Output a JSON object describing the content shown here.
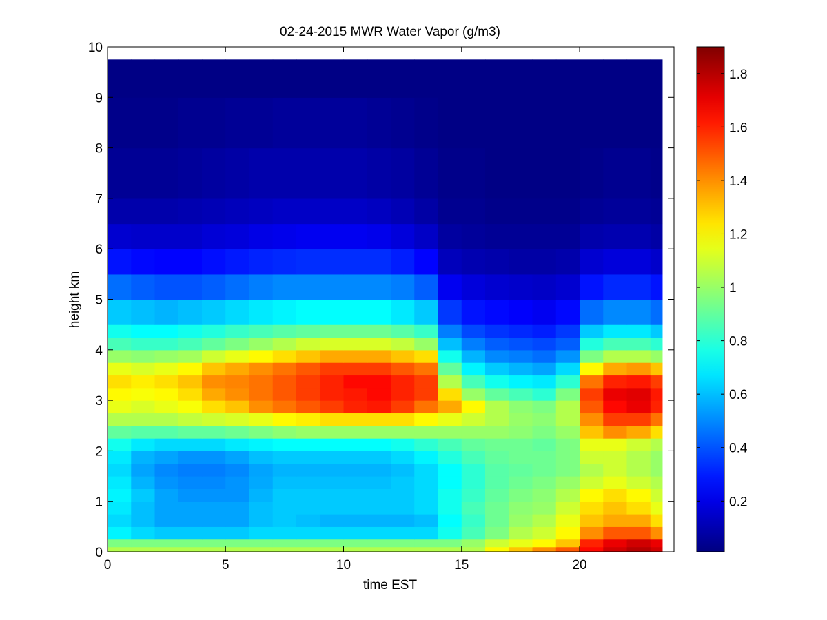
{
  "chart_data": {
    "type": "heatmap",
    "title": "02-24-2015 MWR Water Vapor (g/m3)",
    "xlabel": "time EST",
    "ylabel": "height km",
    "xlim": [
      0,
      24
    ],
    "ylim": [
      0,
      10
    ],
    "x_ticks": [
      0,
      5,
      10,
      15,
      20
    ],
    "y_ticks": [
      0,
      1,
      2,
      3,
      4,
      5,
      6,
      7,
      8,
      9,
      10
    ],
    "colormap": "jet",
    "color_range": [
      0.01,
      1.9
    ],
    "colorbar_ticks": [
      0.2,
      0.4,
      0.6,
      0.8,
      1,
      1.2,
      1.4,
      1.6,
      1.8
    ],
    "data_extent": {
      "time": [
        0,
        23.5
      ],
      "height": [
        0,
        9.75
      ]
    },
    "time_bins": [
      0,
      1,
      2,
      3,
      4,
      5,
      6,
      7,
      8,
      9,
      10,
      11,
      12,
      13,
      14,
      15,
      16,
      17,
      18,
      19,
      20,
      21,
      22,
      23
    ],
    "height_bins_km": [
      0.0,
      0.1,
      0.25,
      0.5,
      0.75,
      1.0,
      1.25,
      1.5,
      1.75,
      2.0,
      2.25,
      2.5,
      2.75,
      3.0,
      3.25,
      3.5,
      3.75,
      4.0,
      4.25,
      4.5,
      5.0,
      5.5,
      6.0,
      6.5,
      7.0,
      8.0,
      9.0
    ],
    "values": [
      [
        1.05,
        1.05,
        1.05,
        1.05,
        1.05,
        1.05,
        1.05,
        1.05,
        1.05,
        1.05,
        1.05,
        1.05,
        1.05,
        1.05,
        1.05,
        1.05,
        1.2,
        1.3,
        1.4,
        1.5,
        1.65,
        1.75,
        1.8,
        1.75
      ],
      [
        0.95,
        0.95,
        0.95,
        0.95,
        0.95,
        0.95,
        0.95,
        0.95,
        0.95,
        0.95,
        0.95,
        0.95,
        0.95,
        0.95,
        0.95,
        1.0,
        1.1,
        1.15,
        1.2,
        1.3,
        1.6,
        1.7,
        1.75,
        1.7
      ],
      [
        0.7,
        0.65,
        0.62,
        0.62,
        0.62,
        0.62,
        0.65,
        0.65,
        0.65,
        0.65,
        0.65,
        0.65,
        0.65,
        0.65,
        0.75,
        0.85,
        0.95,
        1.05,
        1.1,
        1.2,
        1.4,
        1.5,
        1.5,
        1.4
      ],
      [
        0.65,
        0.6,
        0.55,
        0.55,
        0.55,
        0.55,
        0.6,
        0.62,
        0.6,
        0.58,
        0.58,
        0.58,
        0.58,
        0.6,
        0.72,
        0.82,
        0.92,
        1.0,
        1.05,
        1.15,
        1.3,
        1.35,
        1.35,
        1.25
      ],
      [
        0.68,
        0.6,
        0.55,
        0.55,
        0.55,
        0.55,
        0.6,
        0.62,
        0.62,
        0.62,
        0.62,
        0.62,
        0.62,
        0.65,
        0.75,
        0.85,
        0.92,
        0.98,
        1.0,
        1.1,
        1.25,
        1.3,
        1.25,
        1.15
      ],
      [
        0.7,
        0.62,
        0.55,
        0.52,
        0.52,
        0.52,
        0.58,
        0.62,
        0.62,
        0.62,
        0.62,
        0.62,
        0.62,
        0.65,
        0.75,
        0.82,
        0.9,
        0.95,
        0.98,
        1.05,
        1.2,
        1.25,
        1.2,
        1.1
      ],
      [
        0.68,
        0.58,
        0.52,
        0.5,
        0.5,
        0.52,
        0.56,
        0.6,
        0.6,
        0.6,
        0.6,
        0.6,
        0.62,
        0.65,
        0.72,
        0.8,
        0.88,
        0.92,
        0.95,
        1.0,
        1.1,
        1.15,
        1.1,
        1.05
      ],
      [
        0.65,
        0.55,
        0.5,
        0.48,
        0.48,
        0.5,
        0.55,
        0.58,
        0.58,
        0.58,
        0.58,
        0.58,
        0.6,
        0.65,
        0.72,
        0.8,
        0.88,
        0.9,
        0.92,
        0.95,
        1.05,
        1.1,
        1.05,
        1.0
      ],
      [
        0.68,
        0.58,
        0.55,
        0.52,
        0.52,
        0.55,
        0.6,
        0.62,
        0.62,
        0.62,
        0.62,
        0.62,
        0.65,
        0.7,
        0.78,
        0.85,
        0.9,
        0.92,
        0.92,
        0.95,
        1.1,
        1.1,
        1.05,
        1.0
      ],
      [
        0.75,
        0.68,
        0.65,
        0.65,
        0.65,
        0.68,
        0.7,
        0.72,
        0.72,
        0.72,
        0.72,
        0.72,
        0.75,
        0.8,
        0.85,
        0.9,
        0.92,
        0.92,
        0.9,
        0.95,
        1.15,
        1.15,
        1.1,
        1.05
      ],
      [
        0.9,
        0.88,
        0.88,
        0.9,
        0.9,
        0.92,
        0.95,
        0.98,
        1.0,
        1.0,
        1.0,
        1.0,
        1.0,
        1.0,
        1.0,
        1.0,
        1.0,
        0.98,
        0.95,
        1.0,
        1.3,
        1.4,
        1.35,
        1.25
      ],
      [
        1.05,
        1.05,
        1.05,
        1.08,
        1.1,
        1.12,
        1.15,
        1.2,
        1.22,
        1.25,
        1.25,
        1.25,
        1.25,
        1.2,
        1.15,
        1.1,
        1.05,
        1.0,
        0.98,
        1.05,
        1.4,
        1.55,
        1.55,
        1.45
      ],
      [
        1.15,
        1.12,
        1.15,
        1.18,
        1.25,
        1.3,
        1.4,
        1.45,
        1.5,
        1.55,
        1.6,
        1.62,
        1.55,
        1.45,
        1.35,
        1.2,
        1.05,
        0.98,
        0.95,
        1.05,
        1.5,
        1.65,
        1.7,
        1.6
      ],
      [
        1.2,
        1.18,
        1.2,
        1.25,
        1.35,
        1.4,
        1.45,
        1.5,
        1.55,
        1.6,
        1.62,
        1.65,
        1.6,
        1.55,
        1.25,
        1.0,
        0.9,
        0.85,
        0.8,
        0.95,
        1.55,
        1.7,
        1.72,
        1.62
      ],
      [
        1.25,
        1.22,
        1.25,
        1.3,
        1.4,
        1.42,
        1.45,
        1.5,
        1.55,
        1.6,
        1.65,
        1.65,
        1.6,
        1.55,
        1.05,
        0.85,
        0.75,
        0.7,
        0.68,
        0.8,
        1.45,
        1.6,
        1.62,
        1.55
      ],
      [
        1.15,
        1.12,
        1.15,
        1.2,
        1.3,
        1.35,
        1.4,
        1.45,
        1.5,
        1.55,
        1.55,
        1.55,
        1.5,
        1.45,
        0.9,
        0.7,
        0.62,
        0.58,
        0.55,
        0.65,
        1.2,
        1.35,
        1.38,
        1.3
      ],
      [
        1.0,
        0.98,
        1.0,
        1.02,
        1.1,
        1.15,
        1.2,
        1.25,
        1.3,
        1.35,
        1.35,
        1.35,
        1.3,
        1.25,
        0.75,
        0.58,
        0.5,
        0.48,
        0.45,
        0.52,
        0.95,
        1.05,
        1.05,
        1.0
      ],
      [
        0.85,
        0.82,
        0.82,
        0.85,
        0.9,
        0.95,
        1.0,
        1.05,
        1.1,
        1.12,
        1.12,
        1.12,
        1.08,
        1.0,
        0.6,
        0.48,
        0.42,
        0.4,
        0.38,
        0.42,
        0.78,
        0.85,
        0.85,
        0.8
      ],
      [
        0.75,
        0.72,
        0.72,
        0.75,
        0.78,
        0.82,
        0.85,
        0.88,
        0.9,
        0.92,
        0.92,
        0.92,
        0.88,
        0.82,
        0.48,
        0.38,
        0.34,
        0.32,
        0.3,
        0.35,
        0.62,
        0.68,
        0.68,
        0.62
      ],
      [
        0.62,
        0.6,
        0.58,
        0.6,
        0.62,
        0.65,
        0.68,
        0.7,
        0.72,
        0.72,
        0.72,
        0.72,
        0.68,
        0.62,
        0.35,
        0.28,
        0.26,
        0.24,
        0.22,
        0.26,
        0.45,
        0.5,
        0.5,
        0.45
      ],
      [
        0.45,
        0.42,
        0.4,
        0.4,
        0.42,
        0.45,
        0.48,
        0.5,
        0.5,
        0.5,
        0.5,
        0.5,
        0.48,
        0.42,
        0.22,
        0.18,
        0.16,
        0.15,
        0.14,
        0.16,
        0.28,
        0.32,
        0.32,
        0.28
      ],
      [
        0.28,
        0.26,
        0.25,
        0.25,
        0.27,
        0.29,
        0.31,
        0.32,
        0.33,
        0.33,
        0.33,
        0.33,
        0.3,
        0.25,
        0.12,
        0.1,
        0.09,
        0.08,
        0.08,
        0.09,
        0.16,
        0.18,
        0.18,
        0.15
      ],
      [
        0.16,
        0.15,
        0.15,
        0.15,
        0.17,
        0.18,
        0.2,
        0.21,
        0.22,
        0.22,
        0.22,
        0.21,
        0.18,
        0.14,
        0.07,
        0.06,
        0.05,
        0.05,
        0.05,
        0.05,
        0.09,
        0.1,
        0.1,
        0.08
      ],
      [
        0.09,
        0.09,
        0.09,
        0.1,
        0.11,
        0.12,
        0.13,
        0.14,
        0.14,
        0.14,
        0.14,
        0.13,
        0.11,
        0.08,
        0.04,
        0.04,
        0.03,
        0.03,
        0.03,
        0.03,
        0.05,
        0.06,
        0.06,
        0.05
      ],
      [
        0.05,
        0.05,
        0.05,
        0.06,
        0.07,
        0.08,
        0.09,
        0.09,
        0.09,
        0.09,
        0.09,
        0.08,
        0.07,
        0.05,
        0.03,
        0.03,
        0.02,
        0.02,
        0.02,
        0.02,
        0.03,
        0.04,
        0.04,
        0.03
      ],
      [
        0.03,
        0.03,
        0.03,
        0.04,
        0.04,
        0.05,
        0.05,
        0.06,
        0.06,
        0.06,
        0.06,
        0.05,
        0.04,
        0.03,
        0.02,
        0.02,
        0.02,
        0.02,
        0.02,
        0.02,
        0.02,
        0.02,
        0.02,
        0.02
      ],
      [
        0.02,
        0.02,
        0.02,
        0.02,
        0.02,
        0.02,
        0.02,
        0.02,
        0.02,
        0.02,
        0.02,
        0.02,
        0.02,
        0.02,
        0.02,
        0.02,
        0.02,
        0.02,
        0.02,
        0.02,
        0.02,
        0.02,
        0.02,
        0.02
      ]
    ]
  }
}
